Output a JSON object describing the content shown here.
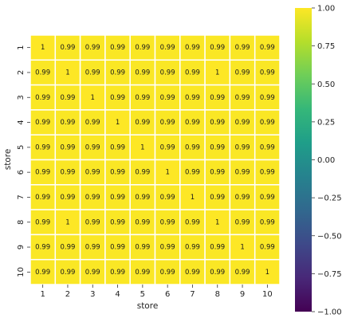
{
  "chart_data": {
    "type": "heatmap",
    "title": "",
    "xlabel": "store",
    "ylabel": "store",
    "x_categories": [
      "1",
      "2",
      "3",
      "4",
      "5",
      "6",
      "7",
      "8",
      "9",
      "10"
    ],
    "y_categories": [
      "1",
      "2",
      "3",
      "4",
      "5",
      "6",
      "7",
      "8",
      "9",
      "10"
    ],
    "values": [
      [
        1,
        0.99,
        0.99,
        0.99,
        0.99,
        0.99,
        0.99,
        0.99,
        0.99,
        0.99
      ],
      [
        0.99,
        1,
        0.99,
        0.99,
        0.99,
        0.99,
        0.99,
        1,
        0.99,
        0.99
      ],
      [
        0.99,
        0.99,
        1,
        0.99,
        0.99,
        0.99,
        0.99,
        0.99,
        0.99,
        0.99
      ],
      [
        0.99,
        0.99,
        0.99,
        1,
        0.99,
        0.99,
        0.99,
        0.99,
        0.99,
        0.99
      ],
      [
        0.99,
        0.99,
        0.99,
        0.99,
        1,
        0.99,
        0.99,
        0.99,
        0.99,
        0.99
      ],
      [
        0.99,
        0.99,
        0.99,
        0.99,
        0.99,
        1,
        0.99,
        0.99,
        0.99,
        0.99
      ],
      [
        0.99,
        0.99,
        0.99,
        0.99,
        0.99,
        0.99,
        1,
        0.99,
        0.99,
        0.99
      ],
      [
        0.99,
        1,
        0.99,
        0.99,
        0.99,
        0.99,
        0.99,
        1,
        0.99,
        0.99
      ],
      [
        0.99,
        0.99,
        0.99,
        0.99,
        0.99,
        0.99,
        0.99,
        0.99,
        1,
        0.99
      ],
      [
        0.99,
        0.99,
        0.99,
        0.99,
        0.99,
        0.99,
        0.99,
        0.99,
        0.99,
        1
      ]
    ],
    "value_labels": [
      [
        "1",
        "0.99",
        "0.99",
        "0.99",
        "0.99",
        "0.99",
        "0.99",
        "0.99",
        "0.99",
        "0.99"
      ],
      [
        "0.99",
        "1",
        "0.99",
        "0.99",
        "0.99",
        "0.99",
        "0.99",
        "1",
        "0.99",
        "0.99"
      ],
      [
        "0.99",
        "0.99",
        "1",
        "0.99",
        "0.99",
        "0.99",
        "0.99",
        "0.99",
        "0.99",
        "0.99"
      ],
      [
        "0.99",
        "0.99",
        "0.99",
        "1",
        "0.99",
        "0.99",
        "0.99",
        "0.99",
        "0.99",
        "0.99"
      ],
      [
        "0.99",
        "0.99",
        "0.99",
        "0.99",
        "1",
        "0.99",
        "0.99",
        "0.99",
        "0.99",
        "0.99"
      ],
      [
        "0.99",
        "0.99",
        "0.99",
        "0.99",
        "0.99",
        "1",
        "0.99",
        "0.99",
        "0.99",
        "0.99"
      ],
      [
        "0.99",
        "0.99",
        "0.99",
        "0.99",
        "0.99",
        "0.99",
        "1",
        "0.99",
        "0.99",
        "0.99"
      ],
      [
        "0.99",
        "1",
        "0.99",
        "0.99",
        "0.99",
        "0.99",
        "0.99",
        "1",
        "0.99",
        "0.99"
      ],
      [
        "0.99",
        "0.99",
        "0.99",
        "0.99",
        "0.99",
        "0.99",
        "0.99",
        "0.99",
        "1",
        "0.99"
      ],
      [
        "0.99",
        "0.99",
        "0.99",
        "0.99",
        "0.99",
        "0.99",
        "0.99",
        "0.99",
        "0.99",
        "1"
      ]
    ],
    "colormap": "viridis",
    "vmin": -1,
    "vmax": 1,
    "colorbar_ticks": [
      1.0,
      0.75,
      0.5,
      0.25,
      0.0,
      -0.25,
      -0.5,
      -0.75,
      -1.0
    ],
    "colorbar_tick_labels": [
      "1.00",
      "0.75",
      "0.50",
      "0.25",
      "0.00",
      "−0.25",
      "−0.50",
      "−0.75",
      "−1.00"
    ],
    "cell_separator_color": "#ffffff",
    "colors": {
      "viridis_stops": [
        "#440154",
        "#482878",
        "#3e4989",
        "#31688e",
        "#26828e",
        "#1f9e89",
        "#35b779",
        "#6ece58",
        "#b5de2b",
        "#fde725"
      ]
    }
  }
}
